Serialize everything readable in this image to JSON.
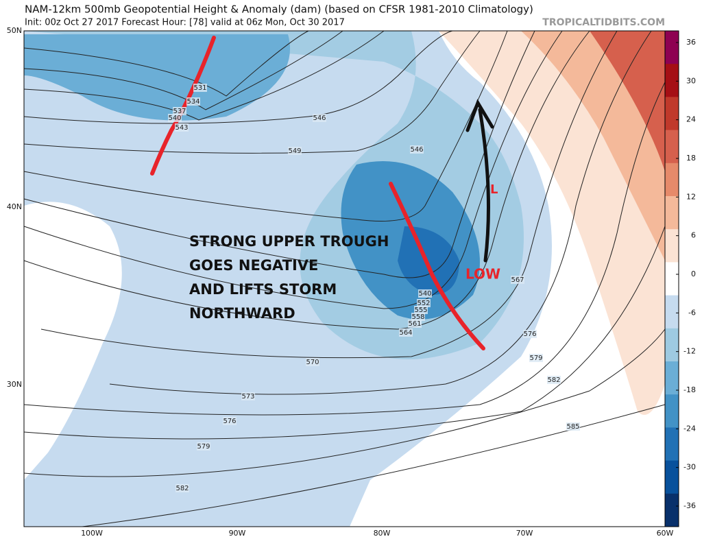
{
  "header": {
    "title": "NAM-12km 500mb Geopotential Height & Anomaly (dam) (based on CFSR 1981-2010 Climatology)",
    "subtitle": "Init: 00z Oct 27 2017   Forecast Hour: [78]   valid at 06z Mon, Oct 30 2017",
    "credit": "TROPICALTIDBITS.COM"
  },
  "map": {
    "lat_labels": [
      "50N",
      "40N",
      "30N"
    ],
    "lon_labels": [
      "100W",
      "90W",
      "80W",
      "70W",
      "60W"
    ],
    "contour_labels": [
      "531",
      "534",
      "537",
      "540",
      "543",
      "546",
      "549",
      "546",
      "540",
      "552",
      "555",
      "558",
      "561",
      "564",
      "567",
      "570",
      "573",
      "576",
      "579",
      "582",
      "576",
      "579",
      "582",
      "585"
    ],
    "annotation": [
      "STRONG UPPER TROUGH",
      "GOES NEGATIVE",
      "AND LIFTS STORM",
      "NORTHWARD"
    ],
    "low_marker": "L",
    "low_label": "LOW"
  },
  "colorbar": {
    "ticks": [
      36,
      30,
      24,
      18,
      12,
      6,
      0,
      -6,
      -12,
      -18,
      -24,
      -30,
      -36
    ],
    "colors": [
      "#8e0152",
      "#a50f15",
      "#c0392b",
      "#d6604d",
      "#e68a6a",
      "#f4b99a",
      "#fbe3d4",
      "#ffffff",
      "#c6dbef",
      "#9ecae1",
      "#6baed6",
      "#4292c6",
      "#2171b5",
      "#08519c",
      "#08306b"
    ]
  }
}
